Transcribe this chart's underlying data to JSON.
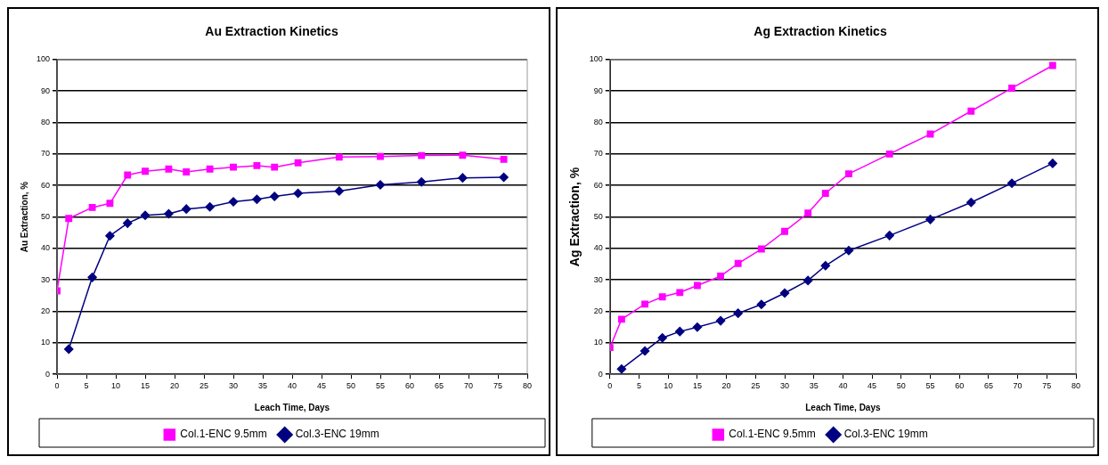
{
  "chart_data": [
    {
      "type": "line",
      "title": "Au Extraction Kinetics",
      "xlabel": "Leach Time, Days",
      "ylabel": "Au Extraction, %",
      "xlim": [
        0,
        80
      ],
      "xticks": [
        0,
        5,
        10,
        15,
        20,
        25,
        30,
        35,
        40,
        45,
        50,
        55,
        60,
        65,
        70,
        75,
        80
      ],
      "ylim": [
        0,
        100
      ],
      "yticks": [
        0,
        10,
        20,
        30,
        40,
        50,
        60,
        70,
        80,
        90,
        100
      ],
      "grid": "y",
      "legend": "bottom",
      "series": [
        {
          "name": "Col.1-ENC 9.5mm",
          "color": "#ff00ff",
          "marker": "square",
          "x": [
            0,
            2,
            6,
            9,
            12,
            15,
            19,
            22,
            26,
            30,
            34,
            37,
            41,
            48,
            55,
            62,
            69,
            76
          ],
          "values": [
            26.5,
            49.5,
            53,
            54.3,
            63.3,
            64.5,
            65.2,
            64.3,
            65.2,
            65.8,
            66.3,
            65.8,
            67.2,
            69,
            69.2,
            69.5,
            69.6,
            68.3
          ]
        },
        {
          "name": "Col.3-ENC 19mm",
          "color": "#000080",
          "marker": "diamond",
          "x": [
            2,
            6,
            9,
            12,
            15,
            19,
            22,
            26,
            30,
            34,
            37,
            41,
            48,
            55,
            62,
            69,
            76
          ],
          "values": [
            8,
            30.8,
            44,
            48,
            50.5,
            51,
            52.5,
            53.2,
            54.8,
            55.6,
            56.5,
            57.5,
            58.2,
            60.2,
            61.1,
            62.4,
            62.6
          ]
        }
      ]
    },
    {
      "type": "line",
      "title": "Ag Extraction Kinetics",
      "xlabel": "Leach Time, Days",
      "ylabel": "Ag Extraction, %",
      "xlim": [
        0,
        80
      ],
      "xticks": [
        0,
        5,
        10,
        15,
        20,
        25,
        30,
        35,
        40,
        45,
        50,
        55,
        60,
        65,
        70,
        75,
        80
      ],
      "ylim": [
        0,
        100
      ],
      "yticks": [
        0,
        10,
        20,
        30,
        40,
        50,
        60,
        70,
        80,
        90,
        100
      ],
      "grid": "y",
      "legend": "bottom",
      "series": [
        {
          "name": "Col.1-ENC 9.5mm",
          "color": "#ff00ff",
          "marker": "square",
          "x": [
            0,
            2,
            6,
            9,
            12,
            15,
            19,
            22,
            26,
            30,
            34,
            37,
            41,
            48,
            55,
            62,
            69,
            76
          ],
          "values": [
            8.5,
            17.5,
            22.3,
            24.6,
            26,
            28.2,
            31.2,
            35.2,
            39.8,
            45.4,
            51.2,
            57.5,
            63.7,
            70,
            76.3,
            83.6,
            90.9,
            98.1
          ]
        },
        {
          "name": "Col.3-ENC 19mm",
          "color": "#000080",
          "marker": "diamond",
          "x": [
            2,
            6,
            9,
            12,
            15,
            19,
            22,
            26,
            30,
            34,
            37,
            41,
            48,
            55,
            62,
            69,
            76
          ],
          "values": [
            1.7,
            7.4,
            11.6,
            13.6,
            15,
            17,
            19.4,
            22.2,
            25.8,
            29.8,
            34.5,
            39.3,
            44.1,
            49.2,
            54.6,
            60.7,
            67
          ]
        }
      ]
    }
  ]
}
